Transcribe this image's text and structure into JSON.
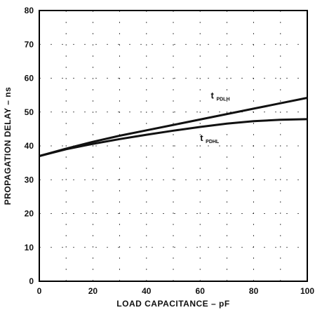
{
  "chart_data": {
    "type": "line",
    "title": "",
    "xlabel": "LOAD CAPACITANCE – pF",
    "ylabel": "PROPAGATION DELAY – ns",
    "xlim": [
      0,
      100
    ],
    "ylim": [
      0,
      80
    ],
    "xticks": [
      0,
      20,
      40,
      60,
      80,
      100
    ],
    "yticks": [
      0,
      10,
      20,
      30,
      40,
      50,
      60,
      70,
      80
    ],
    "grid": true,
    "legend": "inline labels",
    "series": [
      {
        "name": "tPDLH",
        "label_main": "t",
        "label_sub": "PDLH",
        "x": [
          0,
          10,
          20,
          30,
          40,
          50,
          60,
          70,
          80,
          90,
          100
        ],
        "y": [
          37,
          39.2,
          41.2,
          43,
          44.6,
          46.2,
          47.8,
          49.4,
          51,
          52.6,
          54.2
        ]
      },
      {
        "name": "tPDHL",
        "label_main": "t",
        "label_sub": "PDHL",
        "x": [
          0,
          10,
          20,
          30,
          40,
          50,
          60,
          70,
          80,
          90,
          100
        ],
        "y": [
          37,
          39,
          40.6,
          42,
          43.3,
          44.5,
          45.6,
          46.6,
          47.3,
          47.7,
          47.9
        ]
      }
    ]
  }
}
